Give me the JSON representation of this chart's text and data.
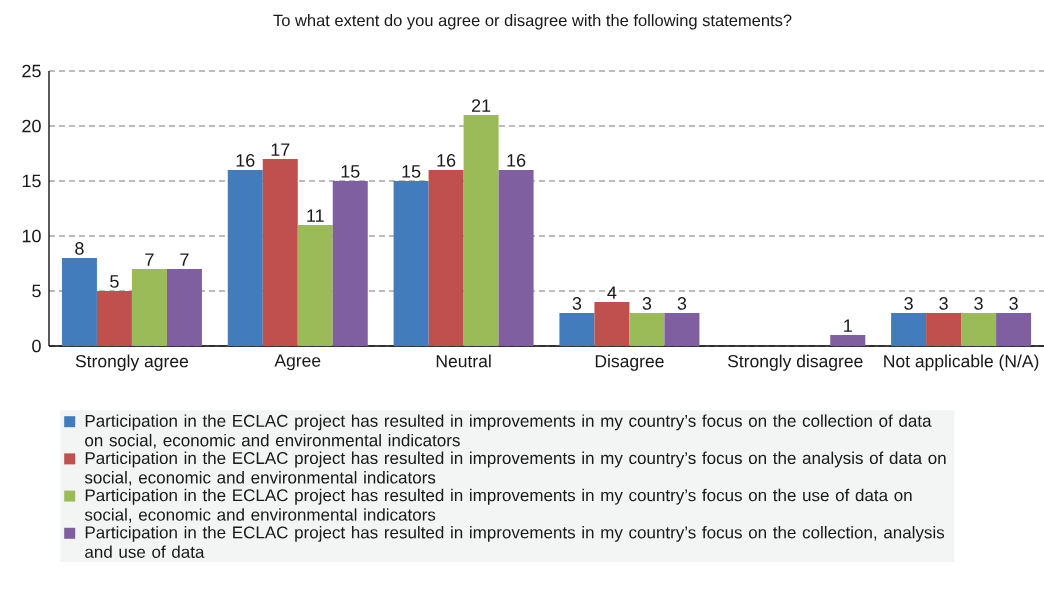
{
  "chart_data": {
    "type": "bar",
    "title": "To what extent do you agree or disagree with the following statements?",
    "categories": [
      "Strongly agree",
      "Agree",
      "Neutral",
      "Disagree",
      "Strongly disagree",
      "Not applicable (N/A)"
    ],
    "series": [
      {
        "name": "Participation in the ECLAC project has resulted in improvements in my country’s focus on the collection of data on social, economic and environmental indicators",
        "color": "#427cbd",
        "values": [
          8,
          16,
          15,
          3,
          0,
          3
        ],
        "value_labels": [
          "8",
          "16",
          "15",
          "3",
          null,
          "3"
        ]
      },
      {
        "name": "Participation in the ECLAC project has resulted in improvements in my country’s focus on the analysis of data on social, economic and environmental indicators",
        "color": "#c0504d",
        "values": [
          5,
          17,
          16,
          4,
          0,
          3
        ],
        "value_labels": [
          "5",
          "17",
          "16",
          "4",
          null,
          "3"
        ]
      },
      {
        "name": "Participation in the ECLAC project has resulted in improvements in my country’s focus on the use of data on social, economic and environmental indicators",
        "color": "#9bbb59",
        "values": [
          7,
          11,
          21,
          3,
          0,
          3
        ],
        "value_labels": [
          "7",
          "11",
          "21",
          "3",
          null,
          "3"
        ]
      },
      {
        "name": "Participation in the ECLAC project has resulted in improvements in my country’s focus on the collection, analysis and use of data",
        "color": "#7f5fa0",
        "values": [
          7,
          15,
          16,
          3,
          1,
          3
        ],
        "value_labels": [
          "7",
          "15",
          "16",
          "3",
          "1",
          "3"
        ]
      }
    ],
    "ylim": [
      0,
      25
    ],
    "yticks": [
      0,
      5,
      10,
      15,
      20,
      25
    ],
    "grid": "y",
    "legend": "bottom"
  }
}
